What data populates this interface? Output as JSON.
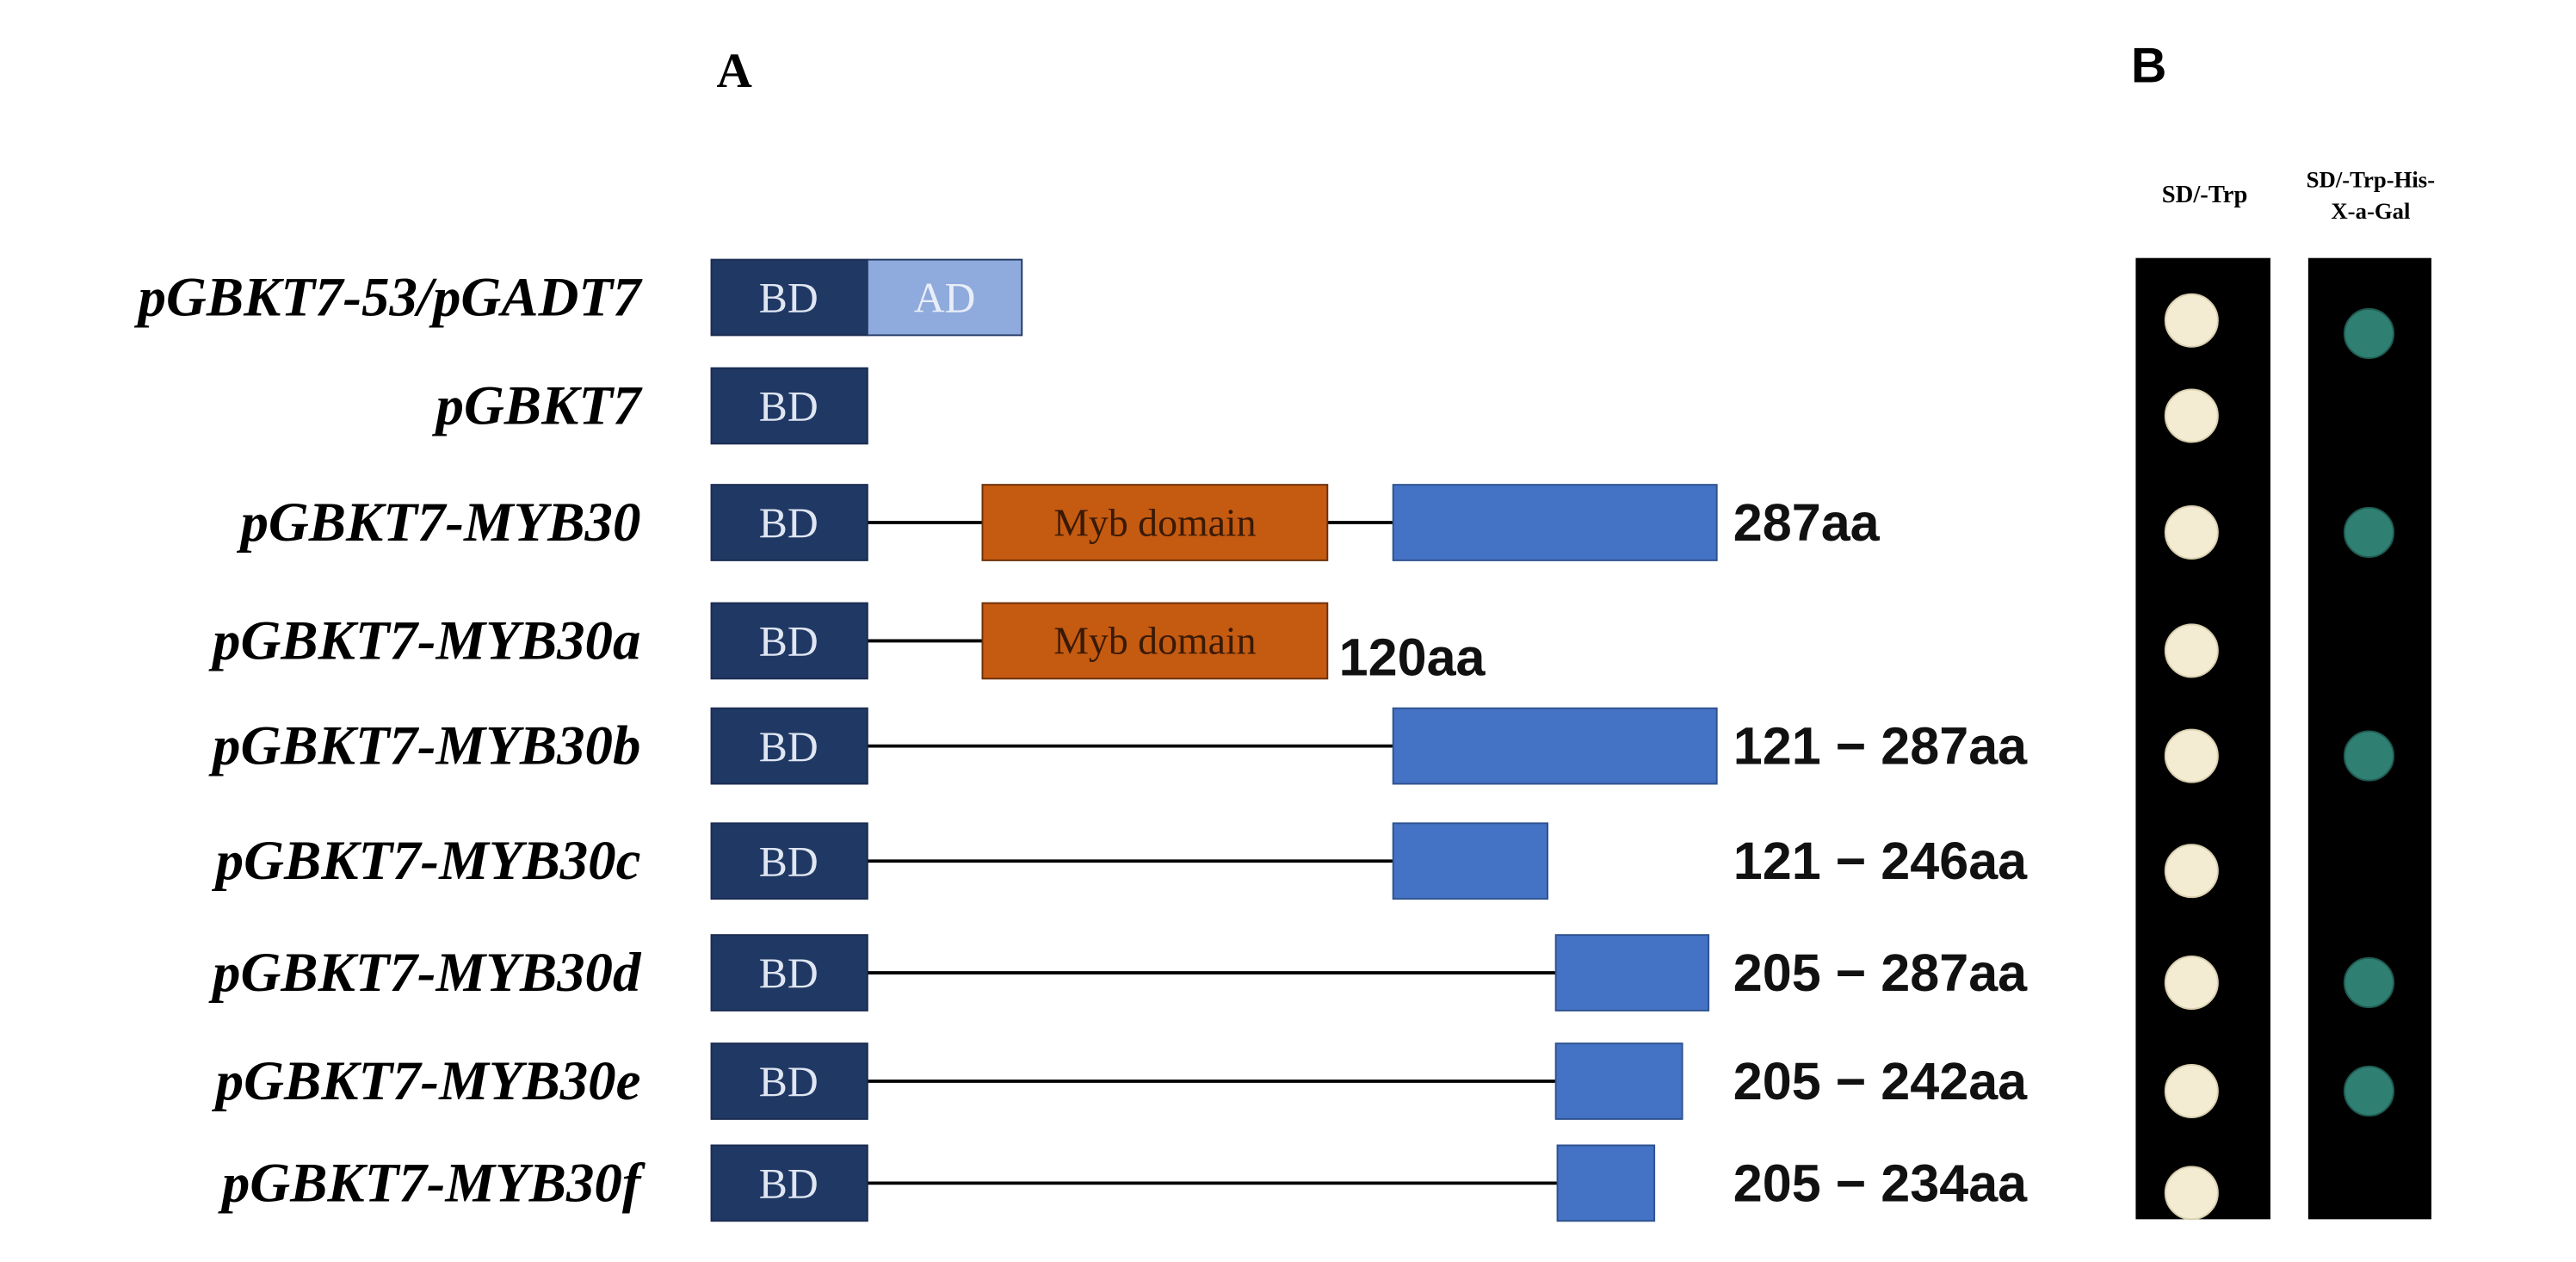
{
  "panels": {
    "a": "A",
    "b": "B"
  },
  "constructs": [
    {
      "name": "pGBKT7-53/pGADT7",
      "bd": "BD",
      "ad": "AD"
    },
    {
      "name": "pGBKT7",
      "bd": "BD"
    },
    {
      "name": "pGBKT7-MYB30",
      "bd": "BD",
      "myb": "Myb domain",
      "size": "287aa"
    },
    {
      "name": "pGBKT7-MYB30a",
      "bd": "BD",
      "myb": "Myb domain",
      "size": "120aa"
    },
    {
      "name": "pGBKT7-MYB30b",
      "bd": "BD",
      "size": "121 − 287aa"
    },
    {
      "name": "pGBKT7-MYB30c",
      "bd": "BD",
      "size": "121 − 246aa"
    },
    {
      "name": "pGBKT7-MYB30d",
      "bd": "BD",
      "size": "205 − 287aa"
    },
    {
      "name": "pGBKT7-MYB30e",
      "bd": "BD",
      "size": "205 − 242aa"
    },
    {
      "name": "pGBKT7-MYB30f",
      "bd": "BD",
      "size": "205 − 234aa"
    }
  ],
  "plates": {
    "col1": "SD/-Trp",
    "col2_line1": "SD/-Trp-His-",
    "col2_line2": "X-a-Gal"
  }
}
